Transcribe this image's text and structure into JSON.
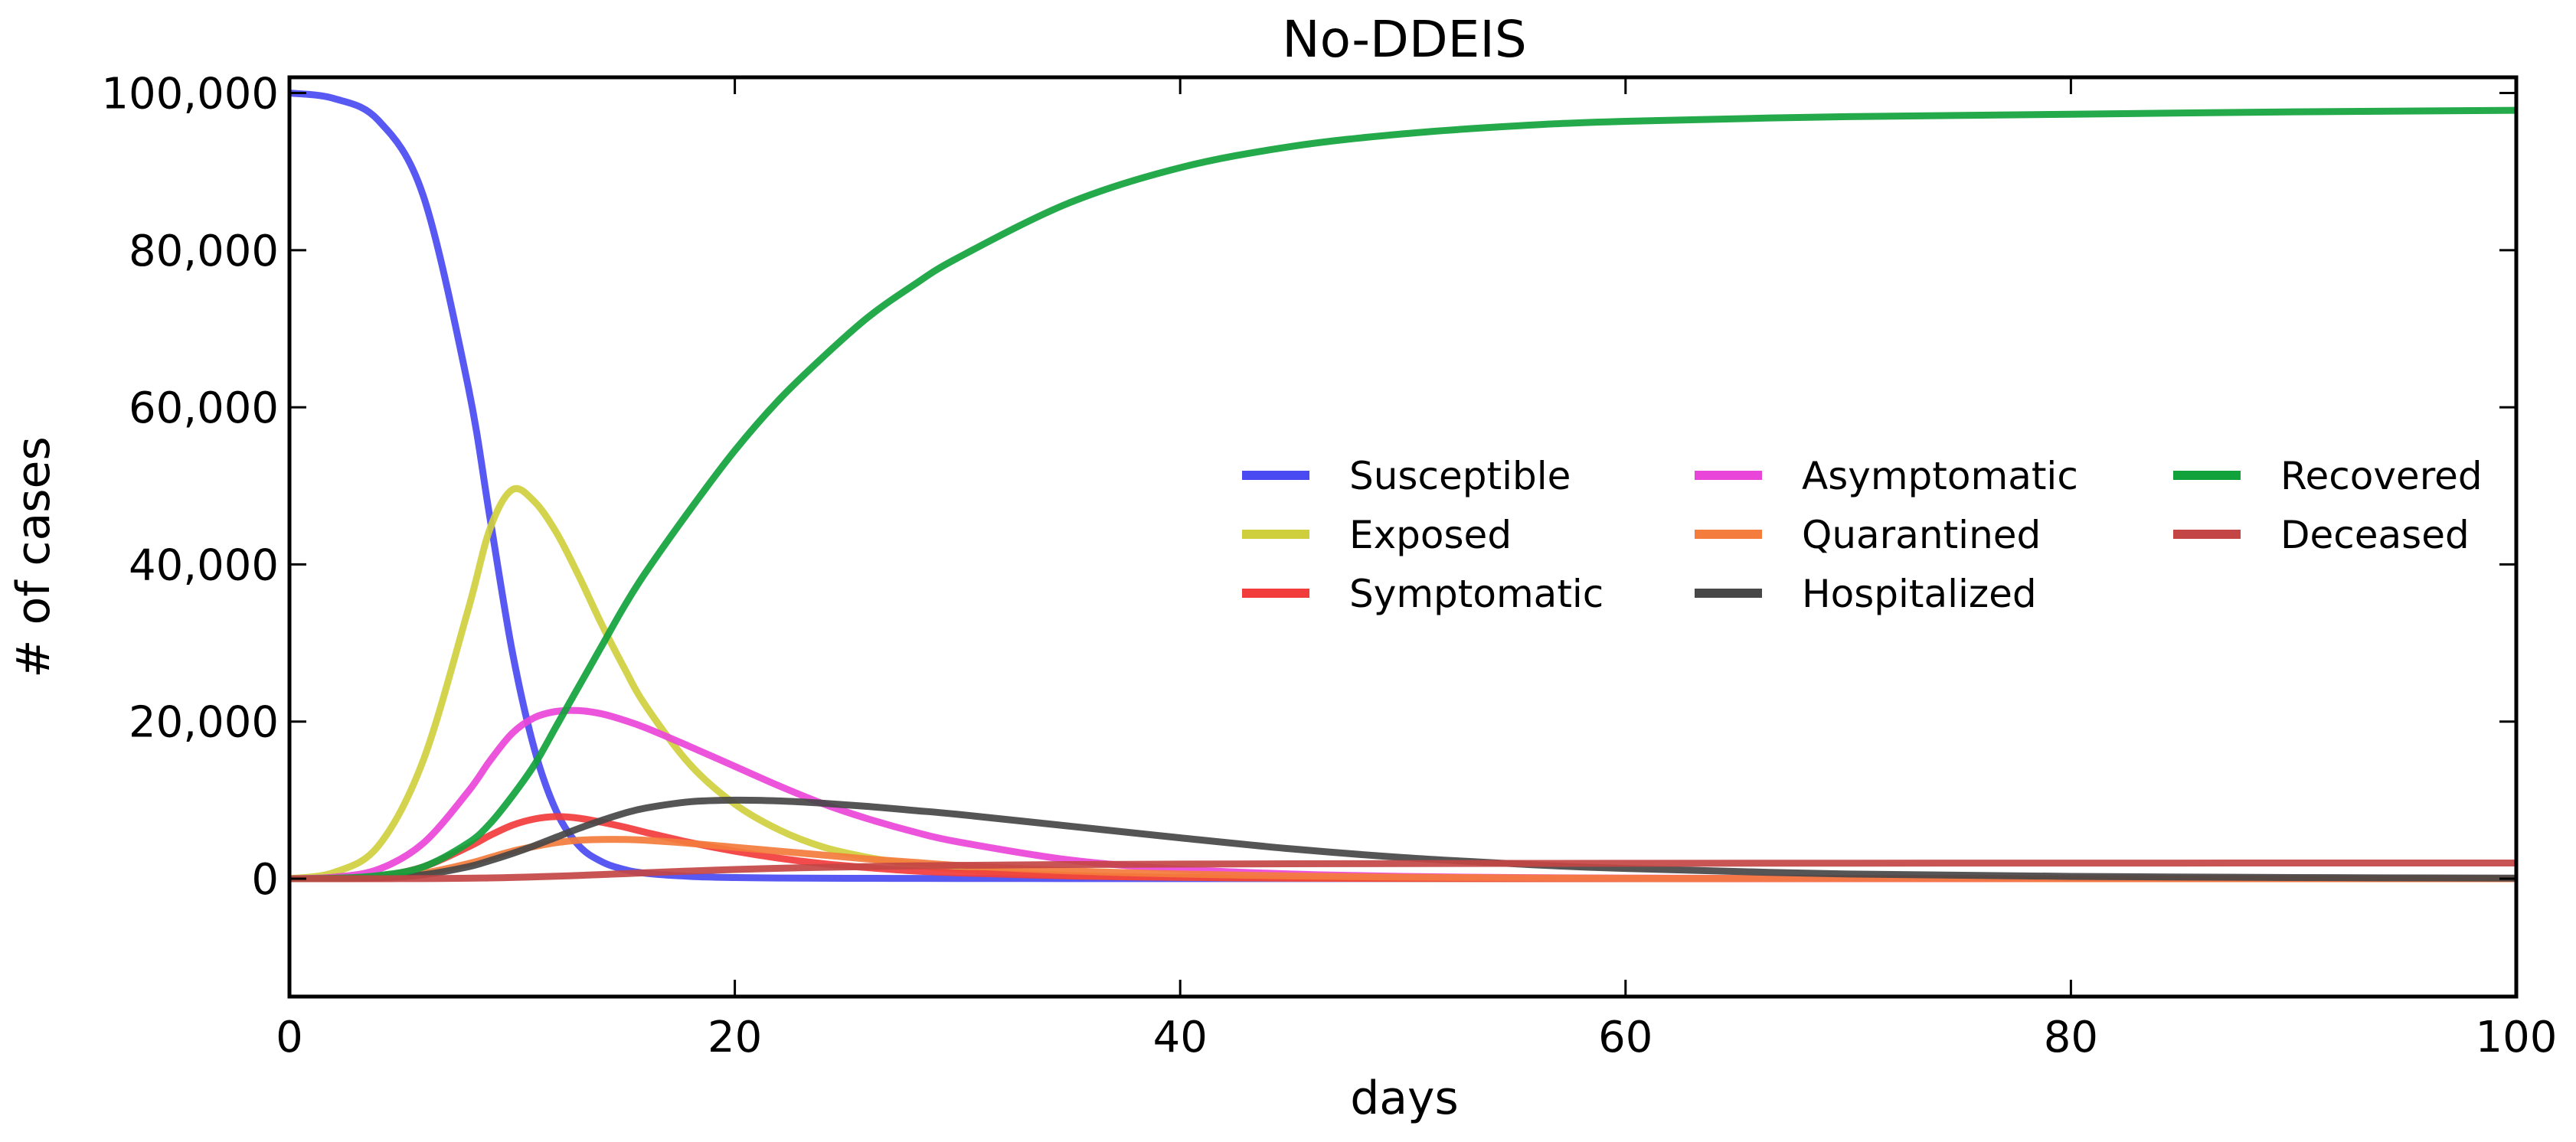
{
  "chart_data": {
    "type": "line",
    "title": "No-DDEIS",
    "xlabel": "days",
    "ylabel": "# of cases",
    "xlim": [
      0,
      100
    ],
    "ylim": [
      -15000,
      102000
    ],
    "x_ticks": [
      0,
      20,
      40,
      60,
      80,
      100
    ],
    "y_ticks": [
      0,
      20000,
      40000,
      60000,
      80000,
      100000
    ],
    "x_tick_labels": [
      "0",
      "20",
      "40",
      "60",
      "80",
      "100"
    ],
    "y_tick_labels": [
      "0",
      "20,000",
      "40,000",
      "60,000",
      "80,000",
      "100,000"
    ],
    "grid": false,
    "legend_position": "center-right",
    "legend_columns": 3,
    "x": [
      0,
      2,
      4,
      6,
      8,
      9,
      10,
      11,
      12,
      13,
      14,
      15,
      16,
      18,
      20,
      22,
      24,
      26,
      28,
      30,
      35,
      40,
      45,
      50,
      55,
      60,
      70,
      80,
      90,
      100
    ],
    "series": [
      {
        "name": "Susceptible",
        "color": "#4a4af2",
        "values": [
          100000,
          99300,
          96500,
          87000,
          63000,
          46000,
          29000,
          16500,
          8500,
          4200,
          2200,
          1200,
          700,
          300,
          150,
          90,
          60,
          50,
          40,
          30,
          20,
          20,
          20,
          20,
          20,
          20,
          20,
          20,
          20,
          20
        ]
      },
      {
        "name": "Exposed",
        "color": "#cfcf3e",
        "values": [
          0,
          800,
          4200,
          15000,
          34000,
          44500,
          49500,
          48000,
          44000,
          38500,
          32500,
          27000,
          22000,
          14500,
          9500,
          6200,
          4000,
          2700,
          1800,
          1200,
          450,
          180,
          70,
          30,
          15,
          5,
          2,
          0,
          0,
          0
        ]
      },
      {
        "name": "Symptomatic",
        "color": "#f23c3c",
        "values": [
          0,
          50,
          300,
          1500,
          4000,
          5500,
          6800,
          7600,
          7900,
          7700,
          7200,
          6600,
          5900,
          4600,
          3500,
          2600,
          1900,
          1400,
          1000,
          750,
          350,
          170,
          80,
          40,
          20,
          10,
          3,
          1,
          0,
          0
        ]
      },
      {
        "name": "Asymptomatic",
        "color": "#ea45d9",
        "values": [
          0,
          200,
          1200,
          4500,
          11000,
          15000,
          18500,
          20500,
          21300,
          21400,
          21000,
          20200,
          19200,
          16800,
          14300,
          11800,
          9500,
          7600,
          6000,
          4700,
          2400,
          1200,
          600,
          300,
          150,
          80,
          20,
          5,
          1,
          0
        ]
      },
      {
        "name": "Quarantined",
        "color": "#f47c3c",
        "values": [
          0,
          20,
          150,
          700,
          1900,
          2700,
          3500,
          4100,
          4600,
          4900,
          5000,
          5000,
          4900,
          4500,
          4000,
          3500,
          3000,
          2500,
          2100,
          1700,
          1000,
          600,
          350,
          200,
          110,
          60,
          20,
          5,
          2,
          0
        ]
      },
      {
        "name": "Hospitalized",
        "color": "#474747",
        "values": [
          0,
          10,
          100,
          500,
          1500,
          2300,
          3200,
          4200,
          5300,
          6400,
          7400,
          8300,
          9000,
          9800,
          10000,
          9900,
          9600,
          9200,
          8700,
          8200,
          6700,
          5200,
          3800,
          2700,
          1900,
          1300,
          600,
          300,
          150,
          70
        ]
      },
      {
        "name": "Recovered",
        "color": "#11a23c",
        "values": [
          0,
          60,
          400,
          1500,
          4500,
          7000,
          10500,
          14500,
          19500,
          24500,
          29500,
          34500,
          39000,
          47000,
          54500,
          61000,
          66500,
          71500,
          75500,
          79000,
          86000,
          90500,
          93200,
          94800,
          95800,
          96400,
          97000,
          97300,
          97600,
          97800
        ]
      },
      {
        "name": "Deceased",
        "color": "#c34545",
        "values": [
          0,
          0,
          5,
          20,
          60,
          100,
          160,
          230,
          320,
          420,
          530,
          640,
          760,
          980,
          1170,
          1330,
          1450,
          1550,
          1630,
          1690,
          1800,
          1860,
          1900,
          1930,
          1950,
          1965,
          1980,
          1990,
          1995,
          2000
        ]
      }
    ]
  }
}
